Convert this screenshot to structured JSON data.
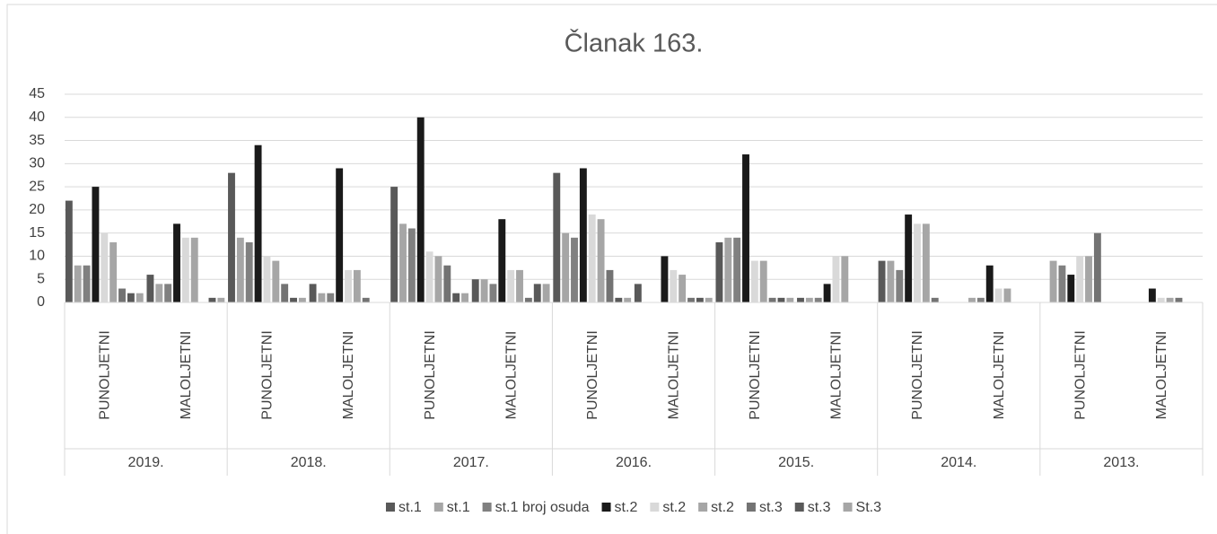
{
  "chart_data": {
    "type": "bar",
    "title": "Članak 163.",
    "categories": [
      "PUNOLJETNI",
      "MALOLJETNI",
      "PUNOLJETNI",
      "MALOLJETNI",
      "PUNOLJETNI",
      "MALOLJETNI",
      "PUNOLJETNI",
      "MALOLJETNI",
      "PUNOLJETNI",
      "MALOLJETNI",
      "PUNOLJETNI",
      "MALOLJETNI",
      "PUNOLJETNI",
      "MALOLJETNI"
    ],
    "category_groups": [
      "2019.",
      "2018.",
      "2017.",
      "2016.",
      "2015.",
      "2014.",
      "2013."
    ],
    "series": [
      {
        "name": "st.1",
        "color": "#595959",
        "values": [
          22,
          6,
          28,
          4,
          25,
          5,
          28,
          4,
          13,
          1,
          9,
          0,
          0,
          0
        ]
      },
      {
        "name": "st.1",
        "color": "#a6a6a6",
        "values": [
          8,
          4,
          14,
          2,
          17,
          5,
          15,
          0,
          14,
          1,
          9,
          1,
          9,
          0
        ]
      },
      {
        "name": "st.1 broj osuda",
        "color": "#808080",
        "values": [
          8,
          4,
          13,
          2,
          16,
          4,
          14,
          0,
          14,
          1,
          7,
          1,
          8,
          0
        ]
      },
      {
        "name": "st.2",
        "color": "#1a1a1a",
        "values": [
          25,
          17,
          34,
          29,
          40,
          18,
          29,
          10,
          32,
          4,
          19,
          8,
          6,
          3
        ]
      },
      {
        "name": "st.2",
        "color": "#d9d9d9",
        "values": [
          15,
          14,
          10,
          7,
          11,
          7,
          19,
          7,
          9,
          10,
          17,
          3,
          10,
          1
        ]
      },
      {
        "name": "st.2",
        "color": "#a6a6a6",
        "values": [
          13,
          14,
          9,
          7,
          10,
          7,
          18,
          6,
          9,
          10,
          17,
          3,
          10,
          1
        ]
      },
      {
        "name": "st.3",
        "color": "#737373",
        "values": [
          3,
          0,
          4,
          1,
          8,
          1,
          7,
          1,
          1,
          0,
          1,
          0,
          15,
          1
        ]
      },
      {
        "name": "st.3",
        "color": "#595959",
        "values": [
          2,
          1,
          1,
          0,
          2,
          4,
          1,
          1,
          1,
          0,
          0,
          0,
          0,
          0
        ]
      },
      {
        "name": "St.3",
        "color": "#a6a6a6",
        "values": [
          2,
          1,
          1,
          0,
          2,
          4,
          1,
          1,
          1,
          0,
          0,
          0,
          0,
          0
        ]
      }
    ],
    "ylim": [
      0,
      45
    ],
    "yticks": [
      0,
      5,
      10,
      15,
      20,
      25,
      30,
      35,
      40,
      45
    ],
    "grid": true,
    "legend": "bottom"
  }
}
